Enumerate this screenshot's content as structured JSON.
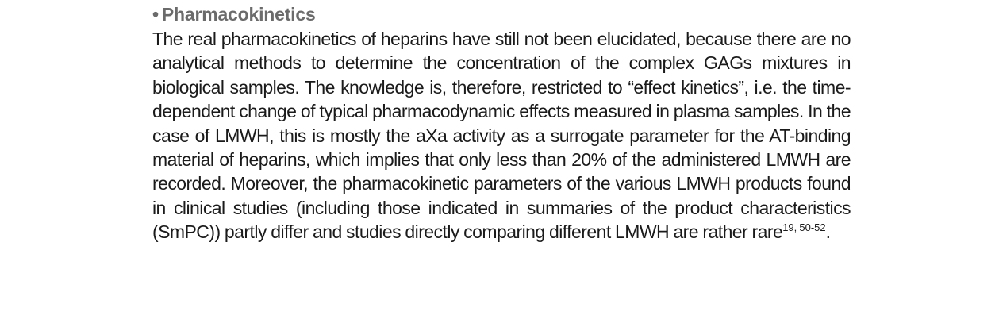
{
  "section": {
    "bullet": "•",
    "heading": "Pharmacokinetics",
    "paragraph": "The real pharmacokinetics of heparins have still not been elucidated, because there are no analytical methods to determine the concentration of the complex GAGs mixtures in biological samples. The knowledge is, therefore, restricted to “effect kinetics”, i.e. the time-dependent change of typical pharmacodynamic effects measured in plasma samples. In the case of LMWH, this is mostly the aXa activity as a surrogate parameter for the AT-binding material of heparins, which implies that only less than 20% of the administered LMWH are recorded. Moreover, the pharmacokinetic parameters of the various LMWH products found in clinical studies (including those indicated in summaries of the product characteristics (SmPC)) partly differ and studies directly comparing different LMWH are rather rare",
    "citation": "19, 50-52",
    "end_punctuation": "."
  }
}
